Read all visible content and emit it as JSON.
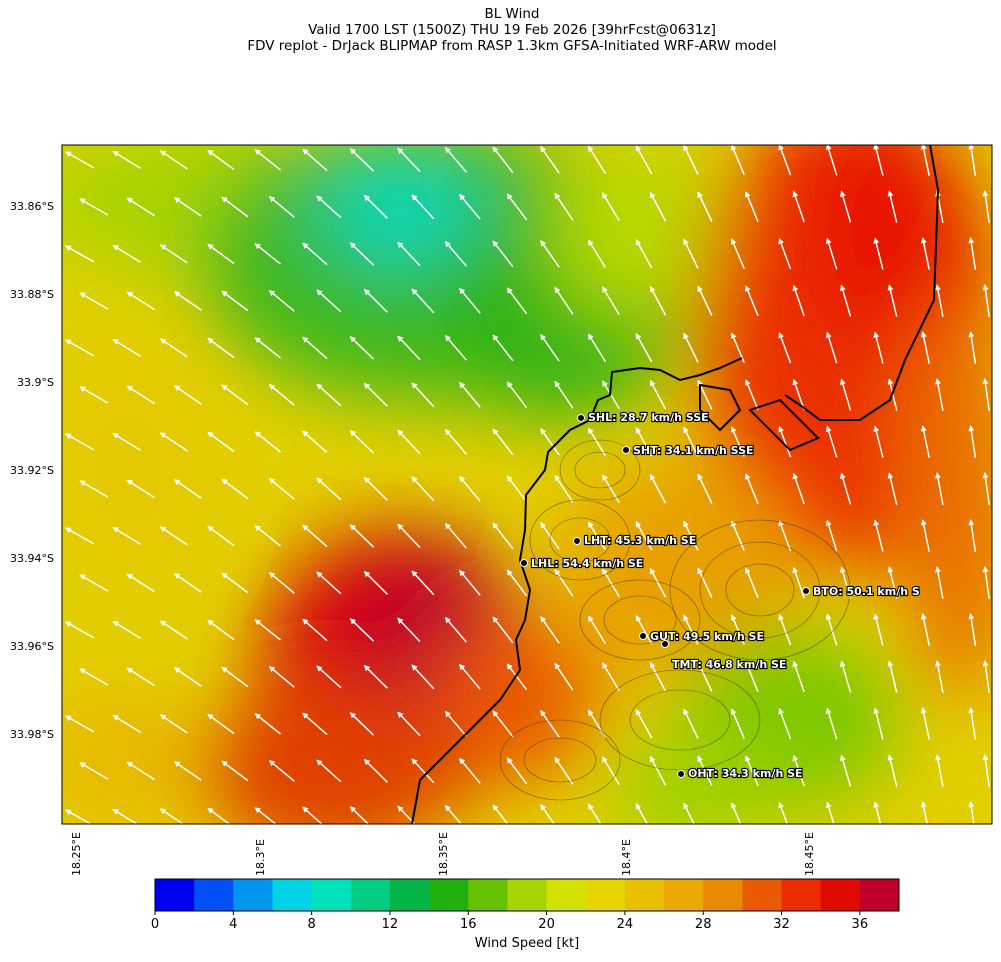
{
  "header": {
    "title": "BL Wind",
    "subtitle": "Valid 1700 LST (1500Z) THU 19 Feb 2026 [39hrFcst@0631z]",
    "model_line": "FDV replot - DrJack BLIPMAP from RASP 1.3km GFSA-Initiated WRF-ARW model"
  },
  "map": {
    "latitude_ticks": [
      "33.86°S",
      "33.88°S",
      "33.9°S",
      "33.92°S",
      "33.94°S",
      "33.96°S",
      "33.98°S"
    ],
    "longitude_ticks": [
      "18.25°E",
      "18.3°E",
      "18.35°E",
      "18.4°E",
      "18.45°E"
    ],
    "stations": [
      {
        "code": "SHL",
        "label": "SHL: 28.7 km/h SSE"
      },
      {
        "code": "SHT",
        "label": "SHT: 34.1 km/h SSE"
      },
      {
        "code": "LHT",
        "label": "LHT: 45.3 km/h SE"
      },
      {
        "code": "LHL",
        "label": "LHL: 54.4 km/h SE"
      },
      {
        "code": "BTO",
        "label": "BTO: 50.1 km/h S"
      },
      {
        "code": "GUT",
        "label": "GUT: 49.5 km/h SE"
      },
      {
        "code": "TMT",
        "label": "TMT: 46.8 km/h SE"
      },
      {
        "code": "OHT",
        "label": "OHT: 34.3 km/h SE"
      }
    ]
  },
  "colorbar": {
    "label": "Wind Speed [kt]",
    "ticks": [
      "0",
      "4",
      "8",
      "12",
      "16",
      "20",
      "24",
      "28",
      "32",
      "36"
    ],
    "colors": [
      "#0000f0",
      "#0050f5",
      "#0096f0",
      "#00d2e6",
      "#00e2be",
      "#00cd82",
      "#00b546",
      "#20b010",
      "#66c200",
      "#a6d400",
      "#d4e000",
      "#e6d400",
      "#e8c000",
      "#eaa800",
      "#ea8a00",
      "#ea5a00",
      "#ea2c00",
      "#e00a00",
      "#c0002a"
    ]
  }
}
